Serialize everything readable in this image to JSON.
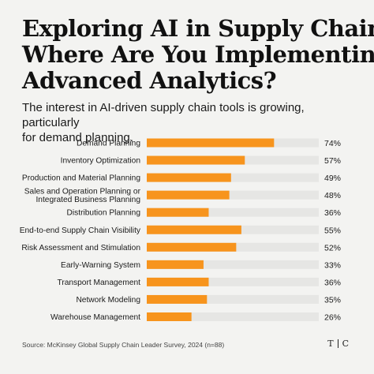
{
  "header": {
    "title_lines": [
      "Exploring AI in Supply Chain:",
      "Where Are You Implementing",
      "Advanced Analytics?"
    ],
    "subtitle_lines": [
      "The interest in AI-driven supply chain tools is growing, particularly",
      "for demand planning."
    ]
  },
  "chart_data": {
    "type": "bar",
    "orientation": "horizontal",
    "categories": [
      [
        "Demand Planning"
      ],
      [
        "Inventory Optimization"
      ],
      [
        "Production and Material Planning"
      ],
      [
        "Sales and Operation Planning or",
        "Integrated Business Planning"
      ],
      [
        "Distribution Planning"
      ],
      [
        "End-to-end Supply Chain Visibility"
      ],
      [
        "Risk Assessment and Stimulation"
      ],
      [
        "Early-Warning System"
      ],
      [
        "Transport Management"
      ],
      [
        "Network Modeling"
      ],
      [
        "Warehouse Management"
      ]
    ],
    "values": [
      74,
      57,
      49,
      48,
      36,
      55,
      52,
      33,
      36,
      35,
      26
    ],
    "value_labels": [
      "74%",
      "57%",
      "49%",
      "48%",
      "36%",
      "55%",
      "52%",
      "33%",
      "36%",
      "35%",
      "26%"
    ],
    "xlim": [
      0,
      100
    ],
    "bar_color": "#f7941d",
    "track_color": "#e6e6e4",
    "grid": false
  },
  "footer": {
    "source": "Source: McKinsey Global Supply Chain Leader Survey, 2024 (n=88)",
    "logo_left": "T",
    "logo_right": "C"
  }
}
